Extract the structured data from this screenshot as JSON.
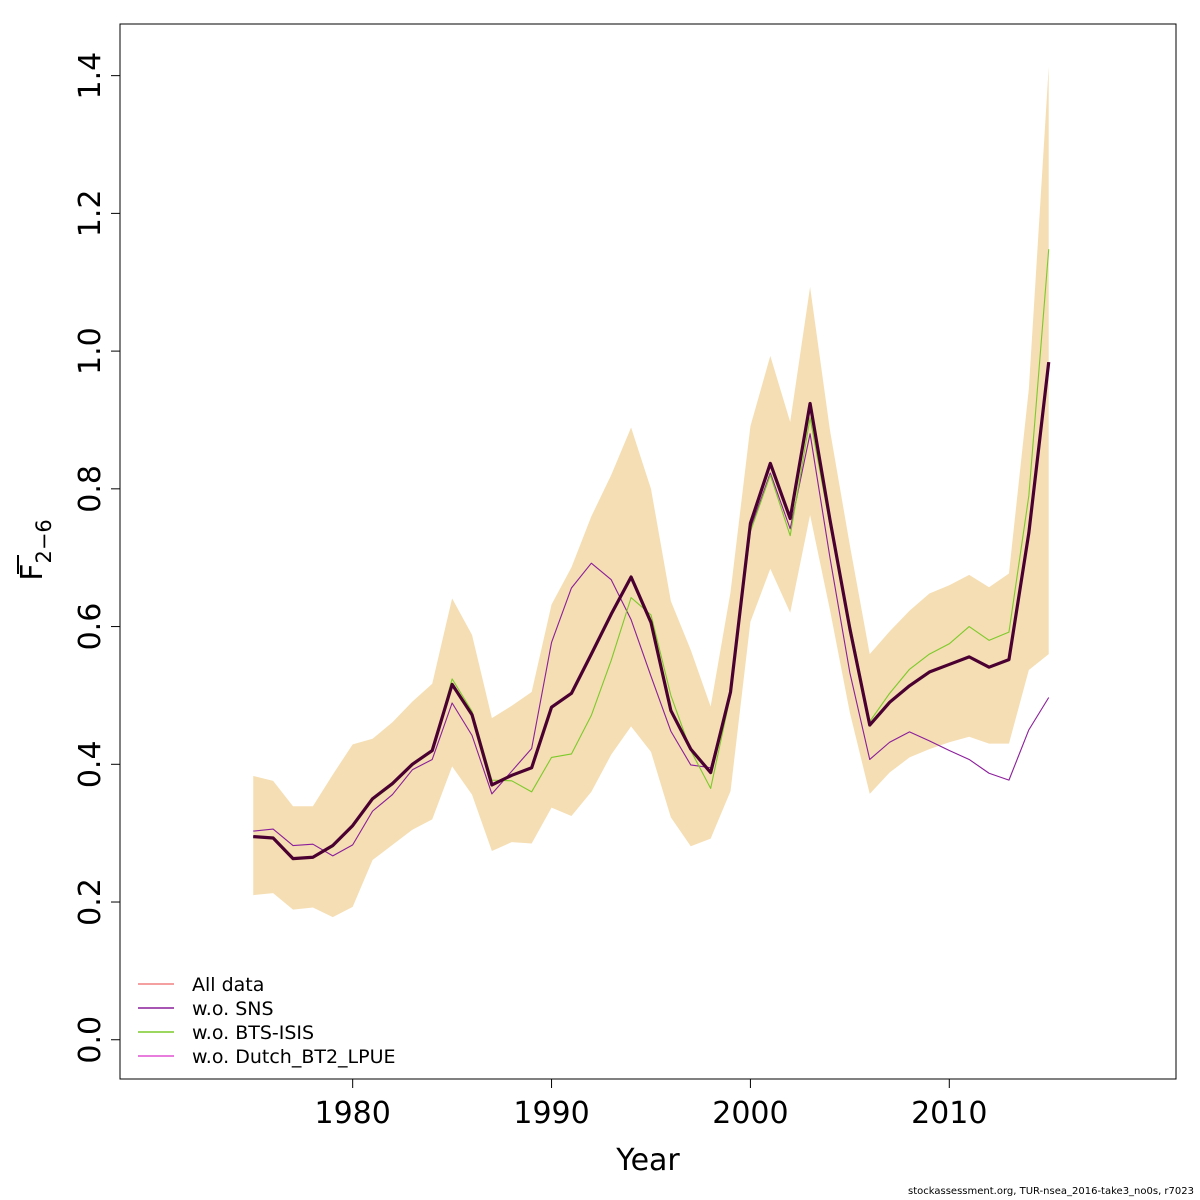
{
  "chart_data": {
    "type": "line",
    "xlabel": "Year",
    "ylabel": "F",
    "ylabel_subscript": "2−6",
    "xlim": [
      1968.3,
      2021.4
    ],
    "ylim": [
      -0.057,
      1.475
    ],
    "x_ticks": [
      1980,
      1990,
      2000,
      2010
    ],
    "x_tick_labels": [
      "1980",
      "1990",
      "2000",
      "2010"
    ],
    "y_ticks": [
      0.0,
      0.2,
      0.4,
      0.6,
      0.8,
      1.0,
      1.2,
      1.4
    ],
    "y_tick_labels": [
      "0.0",
      "0.2",
      "0.4",
      "0.6",
      "0.8",
      "1.0",
      "1.2",
      "1.4"
    ],
    "grid": false,
    "legend_position": "bottom-left",
    "band_color": "#f5deb3",
    "x": [
      1975,
      1976,
      1977,
      1978,
      1979,
      1980,
      1981,
      1982,
      1983,
      1984,
      1985,
      1986,
      1987,
      1988,
      1989,
      1990,
      1991,
      1992,
      1993,
      1994,
      1995,
      1996,
      1997,
      1998,
      1999,
      2000,
      2001,
      2002,
      2003,
      2004,
      2005,
      2006,
      2007,
      2008,
      2009,
      2010,
      2011,
      2012,
      2013,
      2014,
      2015
    ],
    "band_upper": [
      0.383,
      0.376,
      0.339,
      0.339,
      0.385,
      0.429,
      0.437,
      0.461,
      0.491,
      0.517,
      0.641,
      0.588,
      0.467,
      0.485,
      0.505,
      0.632,
      0.686,
      0.76,
      0.82,
      0.889,
      0.8,
      0.637,
      0.566,
      0.484,
      0.65,
      0.891,
      0.993,
      0.897,
      1.093,
      0.885,
      0.718,
      0.56,
      0.593,
      0.623,
      0.648,
      0.66,
      0.675,
      0.657,
      0.677,
      0.945,
      1.413
    ],
    "band_lower": [
      0.21,
      0.213,
      0.189,
      0.192,
      0.178,
      0.193,
      0.261,
      0.283,
      0.305,
      0.32,
      0.397,
      0.356,
      0.274,
      0.287,
      0.285,
      0.337,
      0.325,
      0.36,
      0.414,
      0.455,
      0.418,
      0.323,
      0.281,
      0.292,
      0.361,
      0.607,
      0.684,
      0.62,
      0.762,
      0.624,
      0.475,
      0.357,
      0.388,
      0.41,
      0.422,
      0.432,
      0.44,
      0.43,
      0.43,
      0.537,
      0.56
    ],
    "series": [
      {
        "name": "All data",
        "color": "#f08080",
        "width": 1.6,
        "values": [
          0.295,
          0.293,
          0.263,
          0.265,
          0.282,
          0.311,
          0.35,
          0.372,
          0.4,
          0.42,
          0.516,
          0.472,
          0.37,
          0.384,
          0.395,
          0.483,
          0.503,
          0.56,
          0.618,
          0.672,
          0.606,
          0.478,
          0.422,
          0.388,
          0.505,
          0.75,
          0.837,
          0.757,
          0.924,
          0.755,
          0.597,
          0.457,
          0.49,
          0.514,
          0.534,
          0.545,
          0.556,
          0.541,
          0.552,
          0.736,
          0.984
        ]
      },
      {
        "name": "w.o. SNS",
        "color": "#8b1e9b",
        "width": 1.1,
        "values": [
          0.303,
          0.306,
          0.282,
          0.284,
          0.267,
          0.283,
          0.332,
          0.356,
          0.392,
          0.407,
          0.489,
          0.442,
          0.357,
          0.39,
          0.423,
          0.577,
          0.656,
          0.692,
          0.668,
          0.61,
          0.528,
          0.448,
          0.399,
          0.395,
          0.505,
          0.742,
          0.823,
          0.742,
          0.88,
          0.7,
          0.533,
          0.407,
          0.432,
          0.447,
          0.434,
          0.42,
          0.407,
          0.387,
          0.377,
          0.45,
          0.497
        ]
      },
      {
        "name": "w.o. BTS-ISIS",
        "color": "#7cca2a",
        "width": 1.1,
        "values": [
          0.295,
          0.293,
          0.262,
          0.264,
          0.28,
          0.31,
          0.348,
          0.37,
          0.399,
          0.419,
          0.524,
          0.477,
          0.377,
          0.376,
          0.36,
          0.41,
          0.415,
          0.471,
          0.551,
          0.642,
          0.617,
          0.5,
          0.42,
          0.365,
          0.5,
          0.738,
          0.82,
          0.732,
          0.903,
          0.747,
          0.605,
          0.462,
          0.503,
          0.538,
          0.56,
          0.575,
          0.6,
          0.58,
          0.592,
          0.79,
          1.148
        ]
      },
      {
        "name": "w.o. Dutch_BT2_LPUE",
        "color": "#e052d2",
        "width": 1.1,
        "values": [
          0.295,
          0.293,
          0.263,
          0.265,
          0.282,
          0.311,
          0.35,
          0.372,
          0.4,
          0.42,
          0.516,
          0.472,
          0.37,
          0.384,
          0.395,
          0.483,
          0.503,
          0.56,
          0.618,
          0.672,
          0.606,
          0.478,
          0.422,
          0.388,
          0.505,
          0.75,
          0.837,
          0.757,
          0.924,
          0.755,
          0.597,
          0.457,
          0.49,
          0.514,
          0.534,
          0.545,
          0.556,
          0.541,
          0.552,
          0.736,
          0.984
        ]
      },
      {
        "color": "#4a0030",
        "width": 3.2,
        "values": [
          0.295,
          0.293,
          0.263,
          0.265,
          0.282,
          0.311,
          0.35,
          0.372,
          0.4,
          0.42,
          0.516,
          0.472,
          0.37,
          0.384,
          0.395,
          0.483,
          0.503,
          0.56,
          0.618,
          0.672,
          0.606,
          0.478,
          0.422,
          0.388,
          0.505,
          0.75,
          0.837,
          0.757,
          0.924,
          0.755,
          0.597,
          0.457,
          0.49,
          0.514,
          0.534,
          0.545,
          0.556,
          0.541,
          0.552,
          0.736,
          0.984
        ]
      }
    ],
    "legend": [
      {
        "label": "All data",
        "color": "#f08080"
      },
      {
        "label": "w.o. SNS",
        "color": "#8b1e9b"
      },
      {
        "label": "w.o. BTS-ISIS",
        "color": "#7cca2a"
      },
      {
        "label": "w.o. Dutch_BT2_LPUE",
        "color": "#e052d2"
      }
    ]
  },
  "footer": {
    "credit": "stockassessment.org, TUR-nsea_2016-take3_no0s, r7023"
  }
}
